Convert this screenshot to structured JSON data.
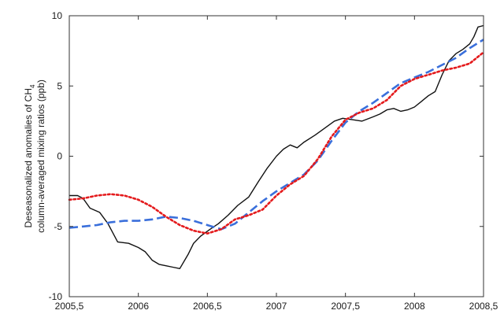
{
  "chart_data": {
    "type": "line",
    "title": "",
    "xlabel": "",
    "ylabel_line1": "Deseasonalized anomalies of CH",
    "ylabel_sub": "4",
    "ylabel_line2": "column-averaged mixing ratios (ppb)",
    "xlim": [
      2005.5,
      2008.5
    ],
    "ylim": [
      -10,
      10
    ],
    "x_ticks": [
      2005.5,
      2006,
      2006.5,
      2007,
      2007.5,
      2008,
      2008.5
    ],
    "x_tick_labels": [
      "2005,5",
      "2006",
      "2006,5",
      "2007",
      "2007,5",
      "2008",
      "2008,5"
    ],
    "y_ticks": [
      -10,
      -5,
      0,
      5,
      10
    ],
    "y_tick_labels": [
      "-10",
      "-5",
      "0",
      "5",
      "10"
    ],
    "grid": false,
    "series": [
      {
        "style": "solid",
        "color": "#111111",
        "x": [
          2005.5,
          2005.56,
          2005.6,
          2005.65,
          2005.72,
          2005.78,
          2005.85,
          2005.93,
          2006.0,
          2006.05,
          2006.1,
          2006.15,
          2006.2,
          2006.25,
          2006.3,
          2006.36,
          2006.4,
          2006.45,
          2006.52,
          2006.58,
          2006.65,
          2006.72,
          2006.8,
          2006.87,
          2006.93,
          2007.0,
          2007.05,
          2007.1,
          2007.15,
          2007.2,
          2007.28,
          2007.35,
          2007.42,
          2007.48,
          2007.55,
          2007.62,
          2007.7,
          2007.75,
          2007.8,
          2007.85,
          2007.9,
          2007.95,
          2008.0,
          2008.05,
          2008.1,
          2008.15,
          2008.2,
          2008.25,
          2008.3,
          2008.35,
          2008.4,
          2008.43,
          2008.46,
          2008.5
        ],
        "y": [
          -2.8,
          -2.8,
          -3.0,
          -3.7,
          -4.0,
          -4.8,
          -6.1,
          -6.2,
          -6.5,
          -6.8,
          -7.4,
          -7.7,
          -7.8,
          -7.9,
          -8.0,
          -7.0,
          -6.2,
          -5.7,
          -5.2,
          -4.8,
          -4.2,
          -3.5,
          -2.9,
          -1.8,
          -0.9,
          0.0,
          0.5,
          0.8,
          0.6,
          1.0,
          1.5,
          2.0,
          2.5,
          2.7,
          2.6,
          2.5,
          2.8,
          3.0,
          3.3,
          3.4,
          3.2,
          3.3,
          3.5,
          3.9,
          4.3,
          4.6,
          5.8,
          6.8,
          7.3,
          7.6,
          8.0,
          8.5,
          9.2,
          9.3
        ]
      },
      {
        "style": "dashed",
        "color": "#3a6fdb",
        "x": [
          2005.5,
          2005.6,
          2005.7,
          2005.8,
          2005.9,
          2006.0,
          2006.1,
          2006.2,
          2006.3,
          2006.4,
          2006.5,
          2006.6,
          2006.7,
          2006.8,
          2006.9,
          2007.0,
          2007.1,
          2007.2,
          2007.3,
          2007.4,
          2007.5,
          2007.6,
          2007.7,
          2007.8,
          2007.9,
          2008.0,
          2008.1,
          2008.2,
          2008.3,
          2008.4,
          2008.5
        ],
        "y": [
          -5.1,
          -5.0,
          -4.9,
          -4.7,
          -4.6,
          -4.6,
          -4.5,
          -4.3,
          -4.4,
          -4.6,
          -4.9,
          -5.2,
          -4.8,
          -4.0,
          -3.2,
          -2.5,
          -1.9,
          -1.3,
          -0.3,
          1.1,
          2.4,
          3.2,
          3.8,
          4.5,
          5.2,
          5.6,
          6.0,
          6.5,
          7.0,
          7.7,
          8.3
        ]
      },
      {
        "style": "dotted",
        "color": "#e41a1c",
        "x": [
          2005.5,
          2005.6,
          2005.7,
          2005.8,
          2005.9,
          2006.0,
          2006.1,
          2006.2,
          2006.3,
          2006.4,
          2006.5,
          2006.6,
          2006.7,
          2006.8,
          2006.9,
          2007.0,
          2007.1,
          2007.2,
          2007.3,
          2007.4,
          2007.5,
          2007.6,
          2007.7,
          2007.8,
          2007.9,
          2008.0,
          2008.1,
          2008.2,
          2008.3,
          2008.4,
          2008.5
        ],
        "y": [
          -3.1,
          -3.0,
          -2.8,
          -2.7,
          -2.8,
          -3.1,
          -3.6,
          -4.3,
          -4.9,
          -5.3,
          -5.5,
          -5.2,
          -4.5,
          -4.2,
          -3.8,
          -2.8,
          -2.0,
          -1.4,
          -0.2,
          1.4,
          2.6,
          3.1,
          3.4,
          4.0,
          5.0,
          5.5,
          5.8,
          6.1,
          6.3,
          6.6,
          7.4
        ]
      }
    ]
  }
}
